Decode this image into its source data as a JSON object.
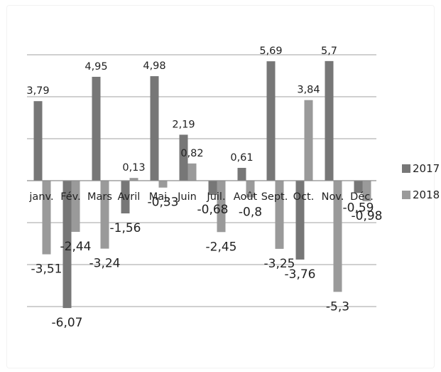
{
  "chart_data": {
    "type": "bar",
    "categories": [
      "janv.",
      "Fév.",
      "Mars",
      "Avril",
      "Maj",
      "Juin",
      "Juil.",
      "Août",
      "Sept.",
      "Oct.",
      "Nov.",
      "Déc."
    ],
    "series": [
      {
        "name": "2017",
        "color": "#777777",
        "values": [
          3.79,
          -6.07,
          4.95,
          -1.56,
          4.98,
          2.19,
          -0.68,
          0.61,
          5.69,
          -3.76,
          5.7,
          -0.59
        ]
      },
      {
        "name": "2018",
        "color": "#9a9a9a",
        "values": [
          -3.51,
          -2.44,
          -3.24,
          0.13,
          -0.33,
          0.82,
          -2.45,
          -0.8,
          -3.25,
          3.84,
          -5.3,
          -0.98
        ]
      }
    ],
    "value_labels": [
      [
        "3,79",
        "-6,07",
        "4,95",
        "-1,56",
        "4,98",
        "2,19",
        "-0,68",
        "0,61",
        "5,69",
        "-3,76",
        "5,7",
        "-0,59"
      ],
      [
        "-3,51",
        "-2,44",
        "-3,24",
        "0,13",
        "-0,33",
        "0,82",
        "-2,45",
        "-0,8",
        "-3,25",
        "3,84",
        "-5,3",
        "-0,98"
      ]
    ],
    "ylim": [
      -6,
      6
    ],
    "grid": true,
    "legend_position": "right"
  },
  "colors": {
    "gridline": "#b3b3b3",
    "axis": "#8c8c8c",
    "text": "#222222"
  }
}
